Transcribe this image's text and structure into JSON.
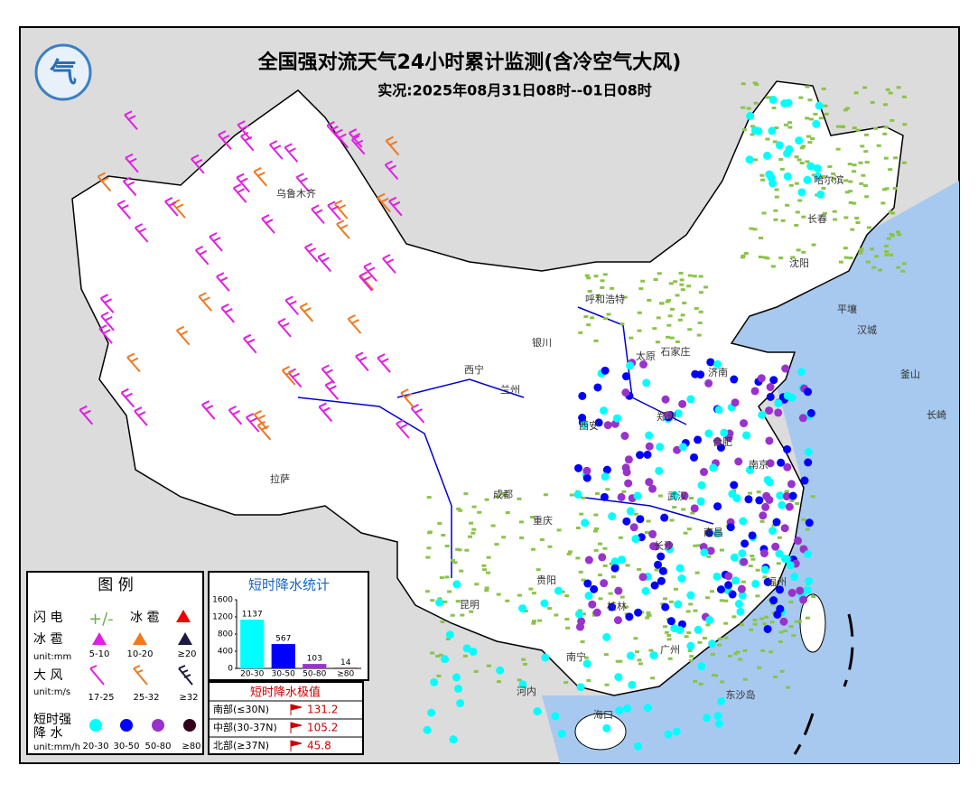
{
  "header": {
    "title": "全国强对流天气24小时累计监测(含冷空气大风)",
    "subtitle": "实况:2025年08月31日08时--01日08时"
  },
  "city_labels": [
    "乌鲁木齐",
    "哈尔滨",
    "长春",
    "沈阳",
    "呼和浩特",
    "太原",
    "石家庄",
    "济南",
    "西宁",
    "兰州",
    "银川",
    "西安",
    "郑州",
    "成都",
    "重庆",
    "拉萨",
    "武汉",
    "长沙",
    "贵阳",
    "昆明",
    "南宁",
    "广州",
    "福州",
    "南京",
    "南昌",
    "合肥",
    "桂林",
    "海口",
    "平壤",
    "汉城",
    "釜山",
    "长崎",
    "河内",
    "东沙岛"
  ],
  "legend": {
    "title": "图 例",
    "lightning": "闪 电",
    "hail_extra": "冰 雹",
    "hail": "冰 雹",
    "hail_unit": "unit:mm",
    "hail_classes": [
      "5-10",
      "10-20",
      "≥20"
    ],
    "wind": "大 风",
    "wind_unit": "unit:m/s",
    "wind_classes": [
      "17-25",
      "25-32",
      "≥32"
    ],
    "rain": [
      "短时强",
      "降  水"
    ],
    "rain_unit": "unit:mm/h",
    "rain_classes": [
      "20-30",
      "30-50",
      "50-80",
      "≥80"
    ]
  },
  "chart_data": {
    "type": "bar",
    "title": "短时降水统计",
    "categories": [
      "20-30",
      "30-50",
      "50-80",
      "≥80"
    ],
    "values": [
      1137,
      567,
      103,
      14
    ],
    "colors": [
      "#00ffff",
      "#0000ff",
      "#9932cc",
      "#33001a"
    ],
    "ylim": [
      0,
      1600
    ],
    "yticks": [
      0,
      400,
      800,
      1200,
      1600
    ]
  },
  "table": {
    "title": "短时降水极值",
    "rows": [
      [
        "南部(≤30N)",
        "131.2"
      ],
      [
        "中部(30-37N)",
        "105.2"
      ],
      [
        "北部(≥37N)",
        "45.8"
      ]
    ]
  }
}
